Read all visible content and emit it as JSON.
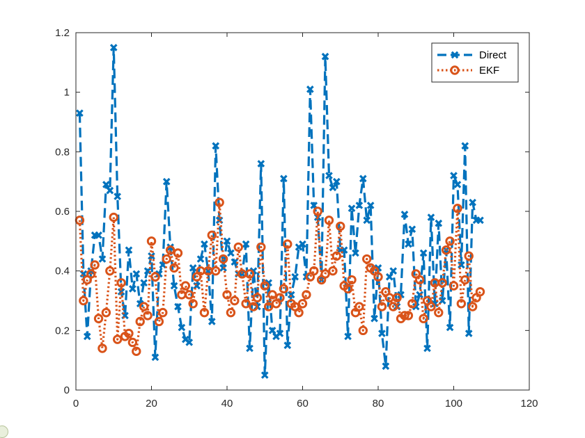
{
  "chart_data": {
    "type": "line",
    "title": "",
    "xlabel": "",
    "ylabel": "",
    "xlim": [
      0,
      120
    ],
    "ylim": [
      0,
      1.2
    ],
    "xticks": [
      "0",
      "20",
      "40",
      "60",
      "80",
      "100",
      "120"
    ],
    "yticks": [
      "0",
      "0.2",
      "0.4",
      "0.6",
      "0.8",
      "1",
      "1.2"
    ],
    "grid": false,
    "legend_position": "top-right",
    "series": [
      {
        "name": "Direct",
        "color": "#0072BD",
        "line_style": "dashed",
        "marker": "x",
        "x": [
          1,
          2,
          3,
          4,
          5,
          6,
          7,
          8,
          9,
          10,
          11,
          12,
          13,
          14,
          15,
          16,
          17,
          18,
          19,
          20,
          21,
          22,
          23,
          24,
          25,
          26,
          27,
          28,
          29,
          30,
          31,
          32,
          33,
          34,
          35,
          36,
          37,
          38,
          39,
          40,
          41,
          42,
          43,
          44,
          45,
          46,
          47,
          48,
          49,
          50,
          51,
          52,
          53,
          54,
          55,
          56,
          57,
          58,
          59,
          60,
          61,
          62,
          63,
          64,
          65,
          66,
          67,
          68,
          69,
          70,
          71,
          72,
          73,
          74,
          75,
          76,
          77,
          78,
          79,
          80,
          81,
          82,
          83,
          84,
          85,
          86,
          87,
          88,
          89,
          90,
          91,
          92,
          93,
          94,
          95,
          96,
          97,
          98,
          99,
          100,
          101,
          102,
          103,
          104,
          105,
          106,
          107
        ],
        "y": [
          0.93,
          0.39,
          0.18,
          0.4,
          0.52,
          0.52,
          0.44,
          0.69,
          0.67,
          1.15,
          0.65,
          0.33,
          0.25,
          0.47,
          0.34,
          0.39,
          0.29,
          0.36,
          0.4,
          0.45,
          0.11,
          0.39,
          0.42,
          0.7,
          0.48,
          0.35,
          0.28,
          0.21,
          0.17,
          0.16,
          0.41,
          0.35,
          0.44,
          0.49,
          0.4,
          0.23,
          0.82,
          0.57,
          0.41,
          0.5,
          0.46,
          0.43,
          0.39,
          0.39,
          0.49,
          0.14,
          0.4,
          0.28,
          0.76,
          0.05,
          0.36,
          0.2,
          0.18,
          0.19,
          0.71,
          0.15,
          0.32,
          0.38,
          0.48,
          0.49,
          0.38,
          1.01,
          0.62,
          0.58,
          0.37,
          1.12,
          0.72,
          0.68,
          0.7,
          0.47,
          0.47,
          0.18,
          0.61,
          0.46,
          0.62,
          0.71,
          0.57,
          0.62,
          0.24,
          0.41,
          0.19,
          0.08,
          0.38,
          0.4,
          0.28,
          0.32,
          0.59,
          0.49,
          0.54,
          0.28,
          0.32,
          0.46,
          0.14,
          0.58,
          0.29,
          0.56,
          0.3,
          0.47,
          0.21,
          0.72,
          0.69,
          0.42,
          0.82,
          0.19,
          0.63,
          0.57,
          0.57
        ]
      },
      {
        "name": "EKF",
        "color": "#D95319",
        "line_style": "dotted",
        "marker": "o",
        "x": [
          1,
          2,
          3,
          4,
          5,
          6,
          7,
          8,
          9,
          10,
          11,
          12,
          13,
          14,
          15,
          16,
          17,
          18,
          19,
          20,
          21,
          22,
          23,
          24,
          25,
          26,
          27,
          28,
          29,
          30,
          31,
          32,
          33,
          34,
          35,
          36,
          37,
          38,
          39,
          40,
          41,
          42,
          43,
          44,
          45,
          46,
          47,
          48,
          49,
          50,
          51,
          52,
          53,
          54,
          55,
          56,
          57,
          58,
          59,
          60,
          61,
          62,
          63,
          64,
          65,
          66,
          67,
          68,
          69,
          70,
          71,
          72,
          73,
          74,
          75,
          76,
          77,
          78,
          79,
          80,
          81,
          82,
          83,
          84,
          85,
          86,
          87,
          88,
          89,
          90,
          91,
          92,
          93,
          94,
          95,
          96,
          97,
          98,
          99,
          100,
          101,
          102,
          103,
          104,
          105,
          106,
          107
        ],
        "y": [
          0.57,
          0.3,
          0.37,
          0.39,
          0.42,
          0.24,
          0.14,
          0.26,
          0.4,
          0.58,
          0.17,
          0.36,
          0.18,
          0.19,
          0.16,
          0.13,
          0.23,
          0.28,
          0.25,
          0.5,
          0.38,
          0.23,
          0.26,
          0.44,
          0.47,
          0.41,
          0.46,
          0.32,
          0.35,
          0.32,
          0.29,
          0.38,
          0.4,
          0.26,
          0.4,
          0.52,
          0.4,
          0.63,
          0.44,
          0.32,
          0.26,
          0.3,
          0.48,
          0.39,
          0.29,
          0.39,
          0.28,
          0.31,
          0.48,
          0.35,
          0.28,
          0.32,
          0.29,
          0.31,
          0.34,
          0.49,
          0.29,
          0.28,
          0.26,
          0.29,
          0.32,
          0.38,
          0.4,
          0.6,
          0.37,
          0.39,
          0.57,
          0.4,
          0.45,
          0.55,
          0.35,
          0.34,
          0.37,
          0.26,
          0.28,
          0.2,
          0.44,
          0.41,
          0.4,
          0.38,
          0.28,
          0.33,
          0.31,
          0.28,
          0.31,
          0.24,
          0.25,
          0.25,
          0.29,
          0.39,
          0.37,
          0.24,
          0.3,
          0.28,
          0.36,
          0.26,
          0.36,
          0.47,
          0.5,
          0.35,
          0.61,
          0.29,
          0.37,
          0.45,
          0.28,
          0.31,
          0.33
        ]
      }
    ]
  }
}
